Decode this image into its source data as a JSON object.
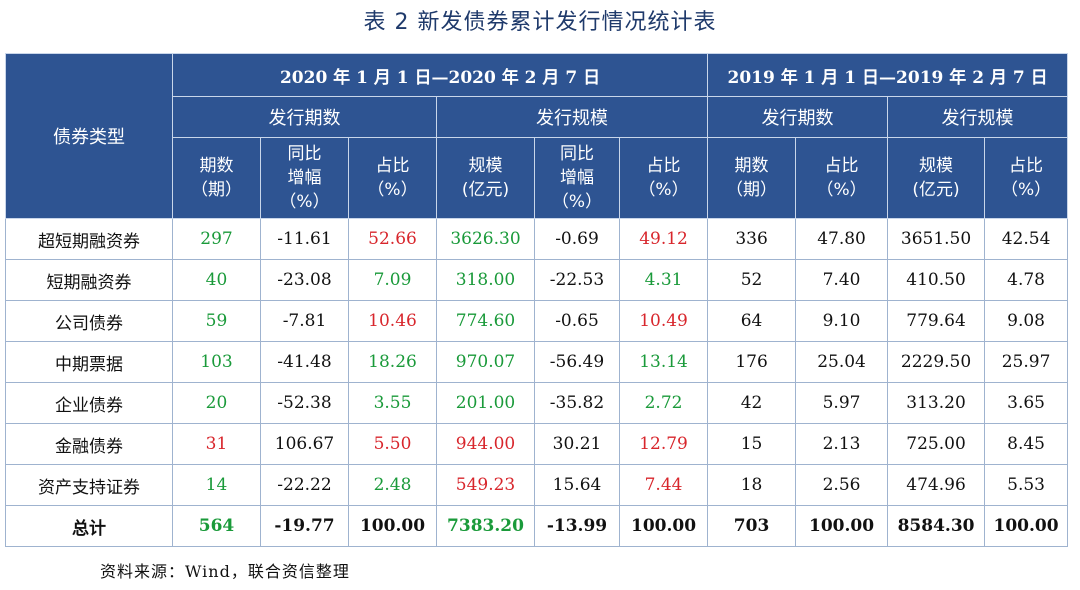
{
  "title": "表 2  新发债券累计发行情况统计表",
  "header": {
    "type_label": "债券类型",
    "period_2020": "2020 年 1 月 1 日—2020 年 2 月 7 日",
    "period_2019": "2019 年 1 月 1 日—2019 年 2 月 7 日",
    "group_count": "发行期数",
    "group_scale": "发行规模",
    "sub": {
      "count": [
        "期数",
        "（期）"
      ],
      "yoy": [
        "同比",
        "增幅",
        "（%）"
      ],
      "share": [
        "占比",
        "（%）"
      ],
      "scale": [
        "规模",
        "(亿元)"
      ]
    }
  },
  "rows": [
    {
      "name": "超短期融资券",
      "c2020": "297",
      "yoy_count": "-11.61",
      "share_count": "52.66",
      "s2020": "3626.30",
      "yoy_scale": "-0.69",
      "share_scale": "49.12",
      "c2019": "336",
      "share_c2019": "47.80",
      "s2019": "3651.50",
      "share_s2019": "42.54"
    },
    {
      "name": "短期融资券",
      "c2020": "40",
      "yoy_count": "-23.08",
      "share_count": "7.09",
      "s2020": "318.00",
      "yoy_scale": "-22.53",
      "share_scale": "4.31",
      "c2019": "52",
      "share_c2019": "7.40",
      "s2019": "410.50",
      "share_s2019": "4.78"
    },
    {
      "name": "公司债券",
      "c2020": "59",
      "yoy_count": "-7.81",
      "share_count": "10.46",
      "s2020": "774.60",
      "yoy_scale": "-0.65",
      "share_scale": "10.49",
      "c2019": "64",
      "share_c2019": "9.10",
      "s2019": "779.64",
      "share_s2019": "9.08"
    },
    {
      "name": "中期票据",
      "c2020": "103",
      "yoy_count": "-41.48",
      "share_count": "18.26",
      "s2020": "970.07",
      "yoy_scale": "-56.49",
      "share_scale": "13.14",
      "c2019": "176",
      "share_c2019": "25.04",
      "s2019": "2229.50",
      "share_s2019": "25.97"
    },
    {
      "name": "企业债券",
      "c2020": "20",
      "yoy_count": "-52.38",
      "share_count": "3.55",
      "s2020": "201.00",
      "yoy_scale": "-35.82",
      "share_scale": "2.72",
      "c2019": "42",
      "share_c2019": "5.97",
      "s2019": "313.20",
      "share_s2019": "3.65"
    },
    {
      "name": "金融债券",
      "c2020": "31",
      "yoy_count": "106.67",
      "share_count": "5.50",
      "s2020": "944.00",
      "yoy_scale": "30.21",
      "share_scale": "12.79",
      "c2019": "15",
      "share_c2019": "2.13",
      "s2019": "725.00",
      "share_s2019": "8.45"
    },
    {
      "name": "资产支持证券",
      "c2020": "14",
      "yoy_count": "-22.22",
      "share_count": "2.48",
      "s2020": "549.23",
      "yoy_scale": "15.64",
      "share_scale": "7.44",
      "c2019": "18",
      "share_c2019": "2.56",
      "s2019": "474.96",
      "share_s2019": "5.53"
    }
  ],
  "total": {
    "name": "总计",
    "c2020": "564",
    "yoy_count": "-19.77",
    "share_count": "100.00",
    "s2020": "7383.20",
    "yoy_scale": "-13.99",
    "share_scale": "100.00",
    "c2019": "703",
    "share_c2019": "100.00",
    "s2019": "8584.30",
    "share_s2019": "100.00"
  },
  "source": "资料来源：Wind，联合资信整理",
  "colors": {
    "header_bg": "#2e5492",
    "up": "#d8262c",
    "down": "#1a9a3a"
  }
}
